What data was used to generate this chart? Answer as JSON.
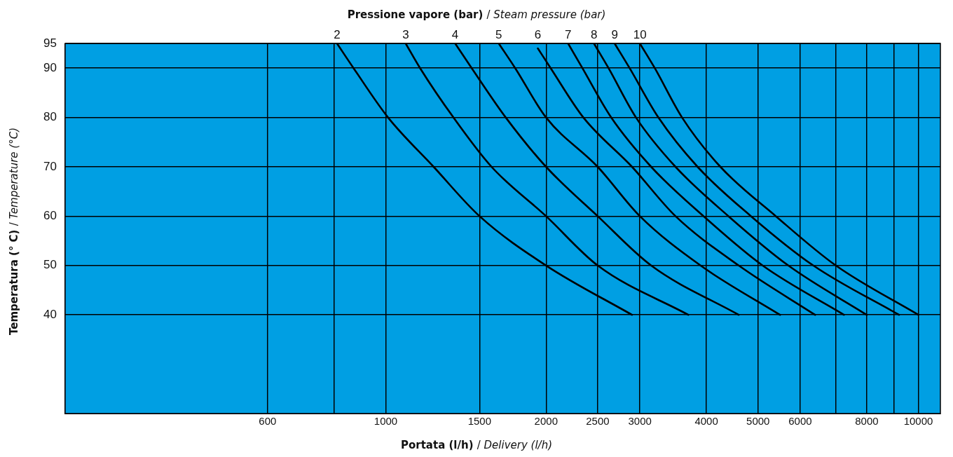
{
  "chart_data": {
    "type": "line",
    "legend_title": "Pressione vapore (bar) / Steam pressure (bar)",
    "xlabel": "Portata (l/h) / Delivery (l/h)",
    "ylabel": "Temperatura (° C)  / Temperature (°C)",
    "log": "x",
    "grid": true,
    "legend": false,
    "marker": "none",
    "line_style": "solid",
    "xlim": [
      250,
      11000
    ],
    "xticks": [
      600,
      {
        "value": 800,
        "label": null
      },
      1000,
      1500,
      2000,
      2500,
      3000,
      4000,
      5000,
      6000,
      {
        "value": 7000,
        "label": null
      },
      8000,
      {
        "value": 9000,
        "label": null
      },
      10000
    ],
    "ylim": [
      20,
      95
    ],
    "yticks": [
      40,
      50,
      60,
      70,
      80,
      90,
      95
    ],
    "series": [
      {
        "name": "2",
        "color": "#000000",
        "x": [
          810,
          870,
          1010,
          1230,
          1500,
          2000,
          2900
        ],
        "values": [
          95,
          90,
          80,
          70,
          60,
          50,
          40
        ]
      },
      {
        "name": "3",
        "color": "#000000",
        "x": [
          1090,
          1160,
          1340,
          1580,
          2000,
          2500,
          3700
        ],
        "values": [
          95,
          90,
          80,
          70,
          60,
          50,
          40
        ]
      },
      {
        "name": "4",
        "color": "#000000",
        "x": [
          1350,
          1450,
          1680,
          2000,
          2500,
          3150,
          4600
        ],
        "values": [
          95,
          90,
          80,
          70,
          60,
          50,
          40
        ]
      },
      {
        "name": "5",
        "color": "#000000",
        "x": [
          1630,
          1750,
          2000,
          2500,
          3000,
          3900,
          5500
        ],
        "values": [
          95,
          90,
          80,
          70,
          60,
          50,
          40
        ]
      },
      {
        "name": "6",
        "color": "#000000",
        "x": [
          1930,
          2040,
          2350,
          2900,
          3500,
          4600,
          6400
        ],
        "values": [
          94,
          90,
          80,
          70,
          60,
          50,
          40
        ]
      },
      {
        "name": "7",
        "color": "#000000",
        "x": [
          2200,
          2340,
          2650,
          3150,
          3950,
          5100,
          7250
        ],
        "values": [
          95,
          90,
          80,
          70,
          60,
          50,
          40
        ]
      },
      {
        "name": "8",
        "color": "#000000",
        "x": [
          2460,
          2620,
          2950,
          3500,
          4400,
          5700,
          8000
        ],
        "values": [
          95,
          90,
          80,
          70,
          60,
          50,
          40
        ]
      },
      {
        "name": "9",
        "color": "#000000",
        "x": [
          2690,
          2870,
          3250,
          3850,
          4850,
          6350,
          9200
        ],
        "values": [
          95,
          90,
          80,
          70,
          60,
          50,
          40
        ]
      },
      {
        "name": "10",
        "color": "#000000",
        "x": [
          3000,
          3200,
          3600,
          4250,
          5400,
          7000,
          10000
        ],
        "values": [
          95,
          90,
          80,
          70,
          60,
          50,
          40
        ]
      }
    ]
  }
}
